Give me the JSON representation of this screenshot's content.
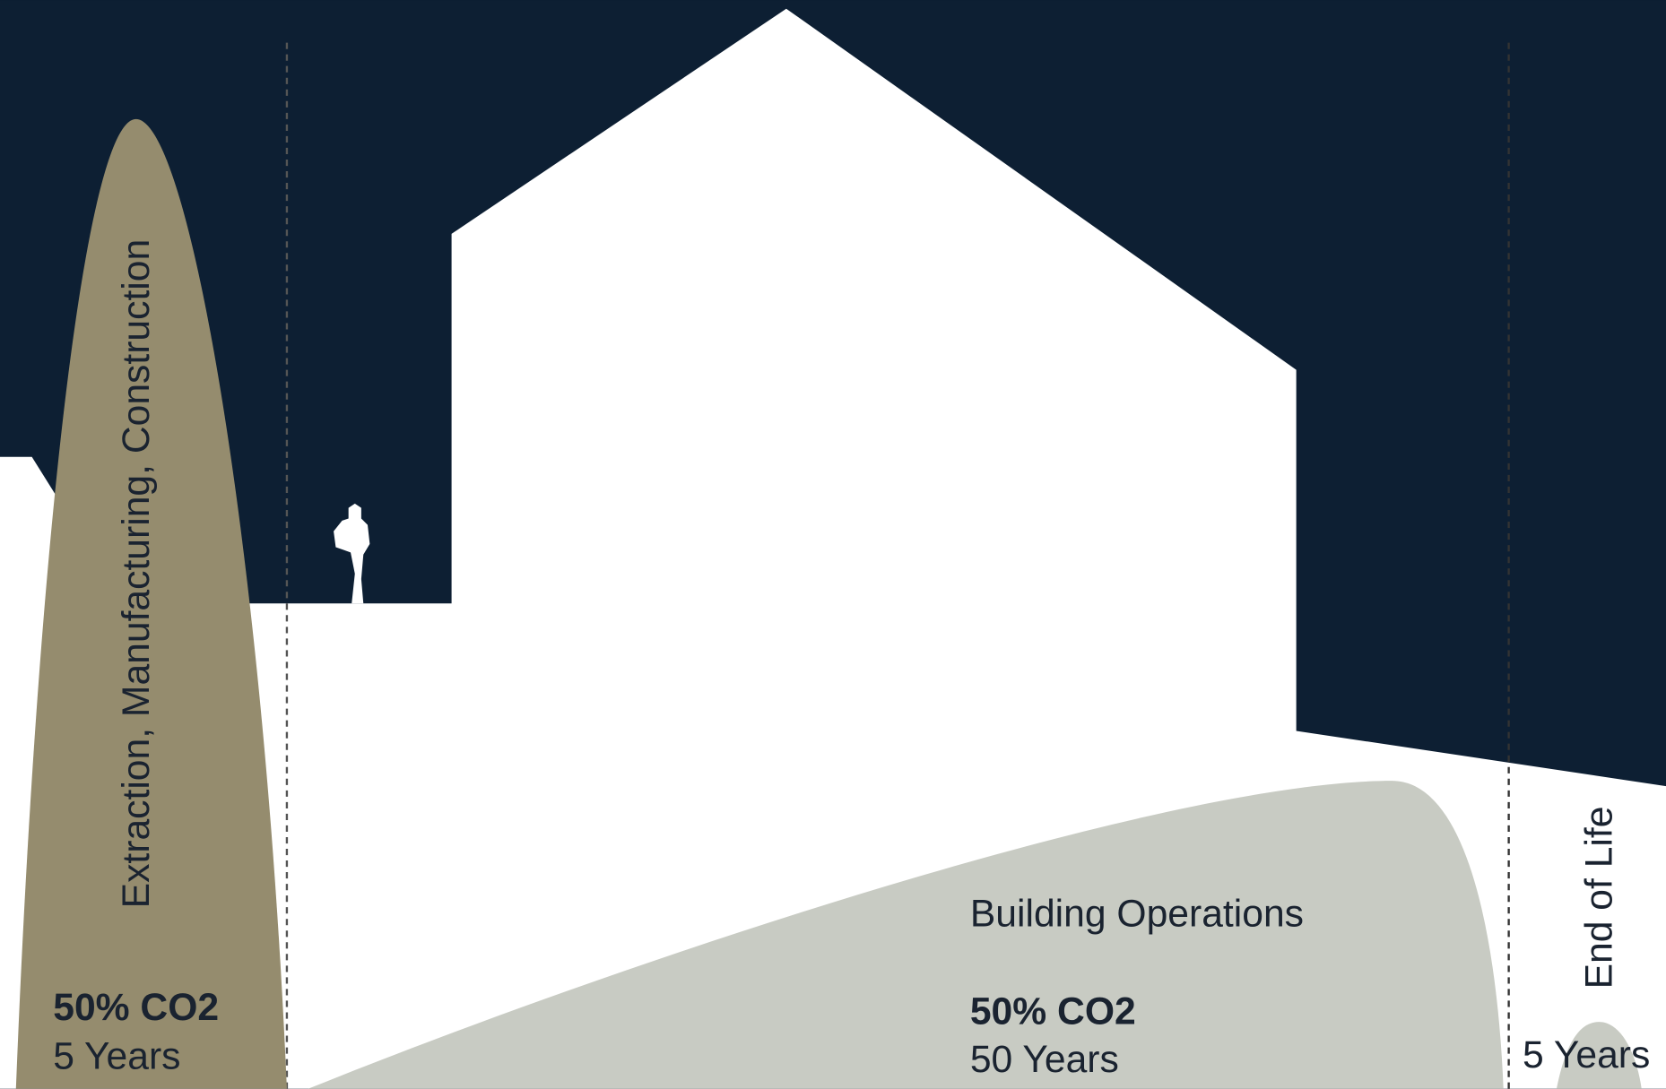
{
  "phases": [
    {
      "label": "Extraction, Manufacturing, Construction",
      "co2": "50% CO2",
      "duration": "5 Years"
    },
    {
      "label": "Building Operations",
      "co2": "50% CO2",
      "duration": "50 Years"
    },
    {
      "label": "End of Life",
      "duration": "5 Years"
    }
  ]
}
